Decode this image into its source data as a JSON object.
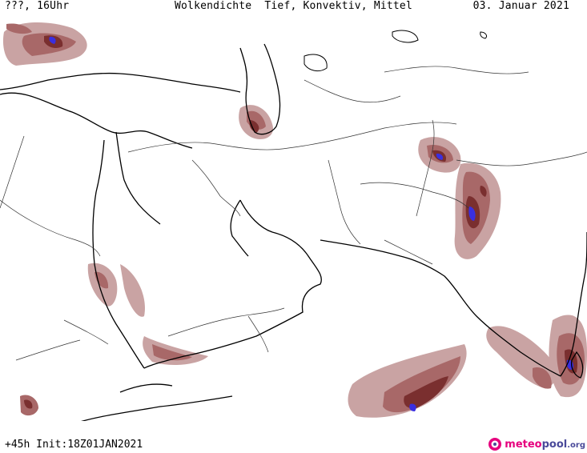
{
  "header": {
    "left": "???, 16Uhr",
    "center": "Wolkendichte  Tief, Konvektiv, Mittel",
    "right": "03. Januar 2021"
  },
  "footer": {
    "left": "+45h Init:18Z01JAN2021"
  },
  "logo": {
    "part1": "meteo",
    "part2": "pool",
    "part3": ".org",
    "icon": "meteopool-logo-icon"
  },
  "colors": {
    "cloud_light": "#c9a3a3",
    "cloud_mid": "#a86868",
    "cloud_dark": "#7a2f2f",
    "cloud_peak": "#3a2fe0",
    "coast": "#000000",
    "border": "#333333"
  }
}
